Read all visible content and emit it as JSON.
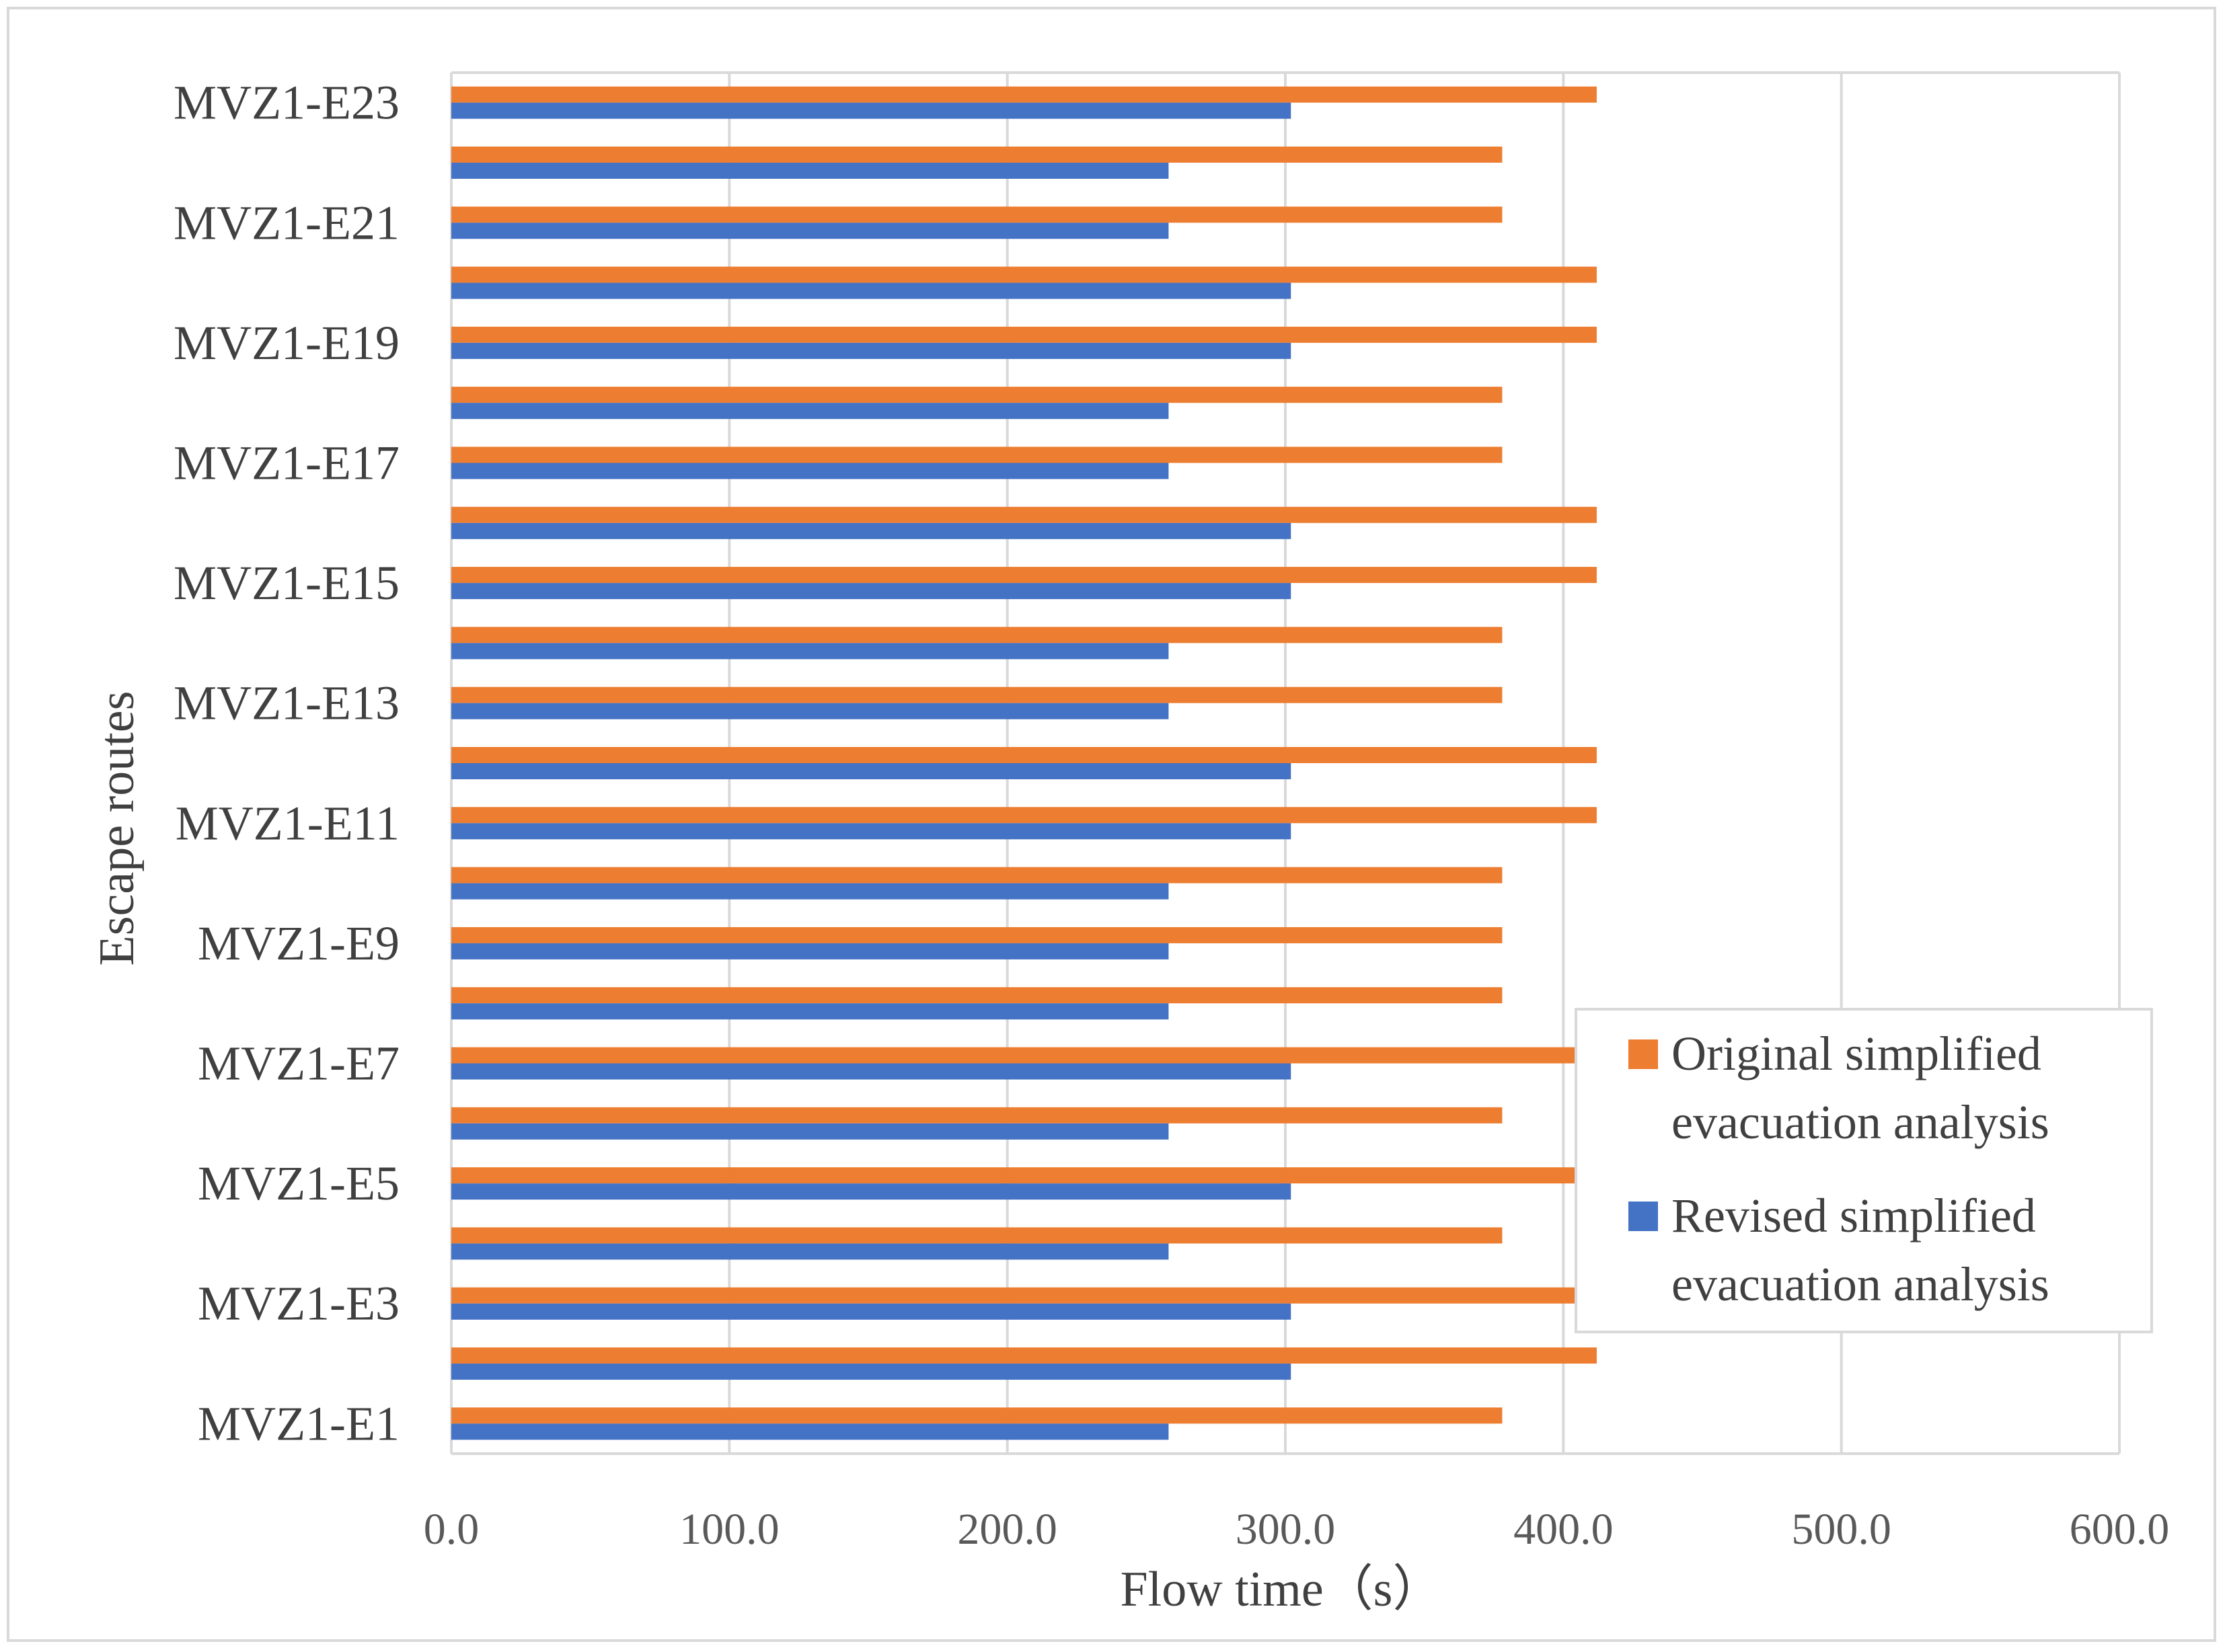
{
  "colors": {
    "original": "#ed7d31",
    "revised": "#4472c4",
    "grid": "#d9d9d9",
    "tick_text": "#595959",
    "label_text": "#404040"
  },
  "chart_data": {
    "type": "bar",
    "orientation": "horizontal",
    "title": "",
    "xlabel": "Flow time（s）",
    "ylabel": "Escape routes",
    "xlim": [
      0,
      600
    ],
    "xticks": [
      "0.0",
      "100.0",
      "200.0",
      "300.0",
      "400.0",
      "500.0",
      "600.0"
    ],
    "grid": true,
    "legend_position": "lower-right",
    "categories": [
      "MVZ1-E1",
      "",
      "MVZ1-E3",
      "",
      "MVZ1-E5",
      "",
      "MVZ1-E7",
      "",
      "MVZ1-E9",
      "",
      "MVZ1-E11",
      "",
      "MVZ1-E13",
      "",
      "MVZ1-E15",
      "",
      "MVZ1-E17",
      "",
      "MVZ1-E19",
      "",
      "MVZ1-E21",
      "",
      "MVZ1-E23"
    ],
    "series": [
      {
        "name": "Original simplified evacuation analysis",
        "legend_lines": [
          "Original simplified",
          "evacuation analysis"
        ],
        "values": [
          378,
          412,
          412,
          378,
          412,
          378,
          412,
          378,
          378,
          378,
          412,
          412,
          378,
          378,
          412,
          412,
          378,
          378,
          412,
          412,
          378,
          378,
          412
        ]
      },
      {
        "name": "Revised simplified evacuation analysis",
        "legend_lines": [
          "Revised simplified",
          "evacuation analysis"
        ],
        "values": [
          258,
          302,
          302,
          258,
          302,
          258,
          302,
          258,
          258,
          258,
          302,
          302,
          258,
          258,
          302,
          302,
          258,
          258,
          302,
          302,
          258,
          258,
          302
        ]
      }
    ]
  }
}
